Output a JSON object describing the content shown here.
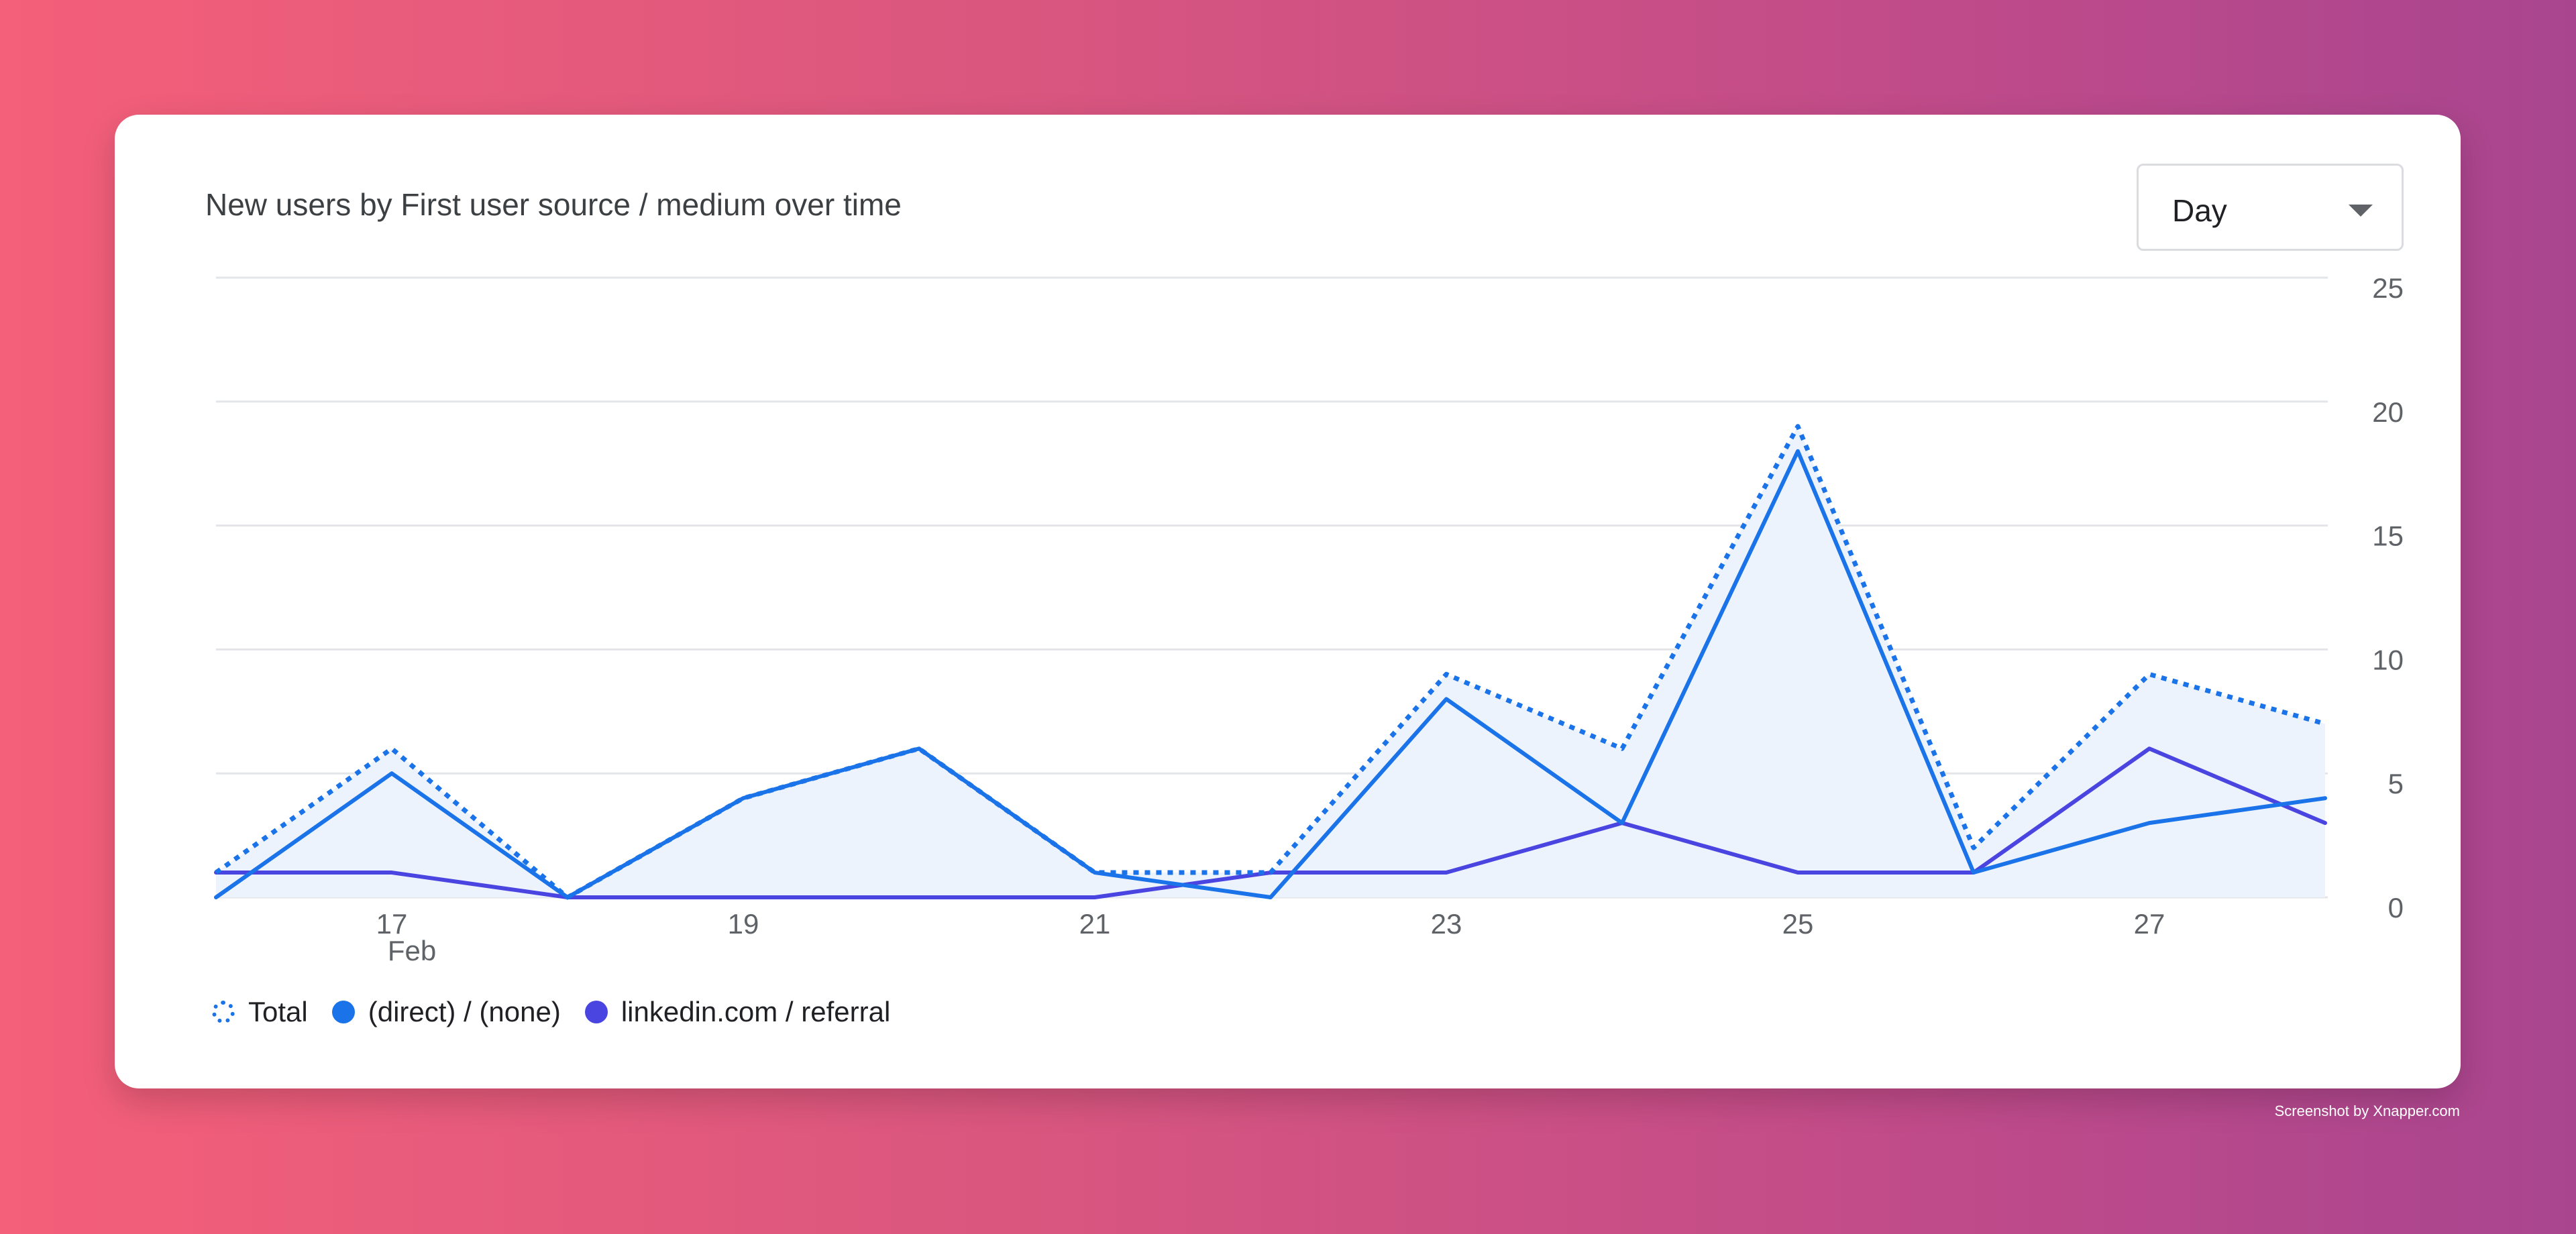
{
  "card": {
    "title": "New users by First user source / medium over time",
    "granularity": {
      "selected": "Day"
    }
  },
  "credit": "Screenshot by Xnapper.com",
  "colors": {
    "total": "#1a73e8",
    "direct": "#1a73e8",
    "linkedin": "#4a45e0",
    "area_fill": "#edf3fc",
    "grid": "#e3e5e8"
  },
  "chart_data": {
    "type": "line",
    "title": "New users by First user source / medium over time",
    "x": [
      16,
      17,
      18,
      19,
      20,
      21,
      22,
      23,
      24,
      25,
      26,
      27,
      28
    ],
    "x_tick_labels": [
      {
        "x": 17,
        "label": "17",
        "sublabel": "Feb"
      },
      {
        "x": 19,
        "label": "19"
      },
      {
        "x": 21,
        "label": "21"
      },
      {
        "x": 23,
        "label": "23"
      },
      {
        "x": 25,
        "label": "25"
      },
      {
        "x": 27,
        "label": "27"
      }
    ],
    "y_ticks": [
      "0",
      "5",
      "10",
      "15",
      "20",
      "25"
    ],
    "ylim": [
      0,
      25
    ],
    "y_axis_position": "right",
    "grid": true,
    "legend_position": "bottom-left",
    "series": [
      {
        "name": "Total",
        "style": "dotted",
        "values": [
          1,
          6,
          0,
          4,
          6,
          1,
          1,
          9,
          6,
          19,
          2,
          9,
          7
        ]
      },
      {
        "name": "(direct) / (none)",
        "style": "solid",
        "area": true,
        "values": [
          0,
          5,
          0,
          4,
          6,
          1,
          0,
          8,
          3,
          18,
          1,
          3,
          4
        ]
      },
      {
        "name": "linkedin.com / referral",
        "style": "solid",
        "values": [
          1,
          1,
          0,
          0,
          0,
          0,
          1,
          1,
          3,
          1,
          1,
          6,
          3
        ]
      }
    ]
  }
}
